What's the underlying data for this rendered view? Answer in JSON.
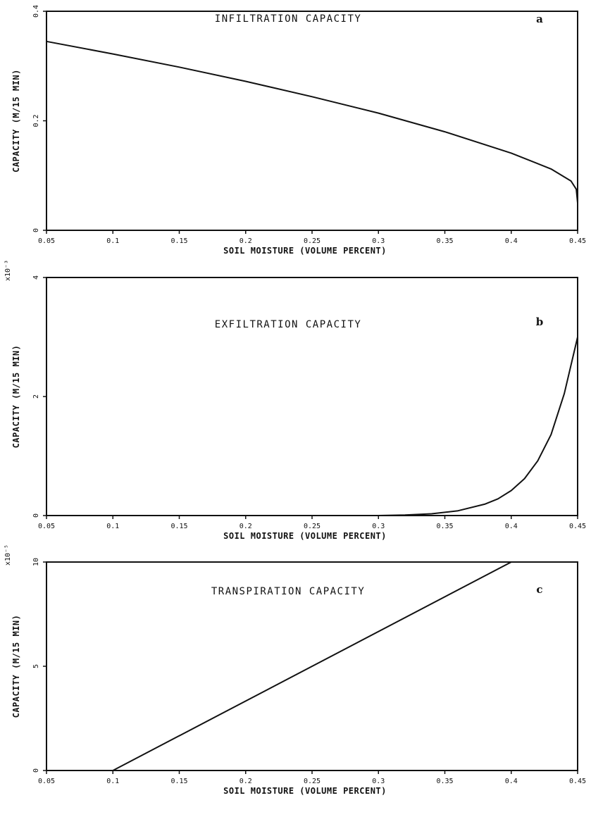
{
  "chart_data": [
    {
      "type": "line",
      "title": "INFILTRATION CAPACITY",
      "panel_label": "a",
      "xlabel": "SOIL MOISTURE (VOLUME PERCENT)",
      "ylabel": "CAPACITY (M/15 MIN)",
      "multiplier": "",
      "xlim": [
        0.05,
        0.45
      ],
      "ylim": [
        0,
        0.4
      ],
      "x_ticks": [
        0.05,
        0.1,
        0.15,
        0.2,
        0.25,
        0.3,
        0.35,
        0.4,
        0.45
      ],
      "x_tick_labels": [
        "0.05",
        "0.1",
        "0.15",
        "0.2",
        "0.25",
        "0.3",
        "0.35",
        "0.4",
        "0.45"
      ],
      "y_ticks": [
        0,
        0.2,
        0.4
      ],
      "y_tick_labels": [
        "0",
        "0.2",
        "0.4"
      ],
      "grid": false,
      "series": [
        {
          "x": [
            0.05,
            0.1,
            0.15,
            0.2,
            0.25,
            0.3,
            0.35,
            0.4,
            0.43,
            0.445,
            0.449,
            0.45
          ],
          "y": [
            0.345,
            0.322,
            0.298,
            0.272,
            0.244,
            0.214,
            0.18,
            0.141,
            0.112,
            0.09,
            0.075,
            0.05
          ]
        }
      ]
    },
    {
      "type": "line",
      "title": "EXFILTRATION CAPACITY",
      "panel_label": "b",
      "xlabel": "SOIL MOISTURE (VOLUME PERCENT)",
      "ylabel": "CAPACITY (M/15 MIN)",
      "multiplier": "x10⁻³",
      "xlim": [
        0.05,
        0.45
      ],
      "ylim": [
        0,
        4
      ],
      "x_ticks": [
        0.05,
        0.1,
        0.15,
        0.2,
        0.25,
        0.3,
        0.35,
        0.4,
        0.45
      ],
      "x_tick_labels": [
        "0.05",
        "0.1",
        "0.15",
        "0.2",
        "0.25",
        "0.3",
        "0.35",
        "0.4",
        "0.45"
      ],
      "y_ticks": [
        0,
        2,
        4
      ],
      "y_tick_labels": [
        "0",
        "2",
        "4"
      ],
      "grid": false,
      "series": [
        {
          "x": [
            0.05,
            0.2,
            0.3,
            0.32,
            0.34,
            0.36,
            0.38,
            0.39,
            0.4,
            0.41,
            0.42,
            0.43,
            0.44,
            0.45
          ],
          "y": [
            0,
            0,
            0,
            0.01,
            0.03,
            0.08,
            0.19,
            0.28,
            0.42,
            0.62,
            0.92,
            1.36,
            2.05,
            3.0
          ]
        }
      ]
    },
    {
      "type": "line",
      "title": "TRANSPIRATION CAPACITY",
      "panel_label": "c",
      "xlabel": "SOIL MOISTURE (VOLUME PERCENT)",
      "ylabel": "CAPACITY (M/15 MIN)",
      "multiplier": "x10⁻⁵",
      "xlim": [
        0.05,
        0.45
      ],
      "ylim": [
        0,
        10
      ],
      "x_ticks": [
        0.05,
        0.1,
        0.15,
        0.2,
        0.25,
        0.3,
        0.35,
        0.4,
        0.45
      ],
      "x_tick_labels": [
        "0.05",
        "0.1",
        "0.15",
        "0.2",
        "0.25",
        "0.3",
        "0.35",
        "0.4",
        "0.45"
      ],
      "y_ticks": [
        0,
        5,
        10
      ],
      "y_tick_labels": [
        "0",
        "5",
        "10"
      ],
      "grid": false,
      "series": [
        {
          "x": [
            0.1,
            0.4,
            0.45
          ],
          "y": [
            0,
            10,
            10
          ]
        }
      ]
    }
  ]
}
